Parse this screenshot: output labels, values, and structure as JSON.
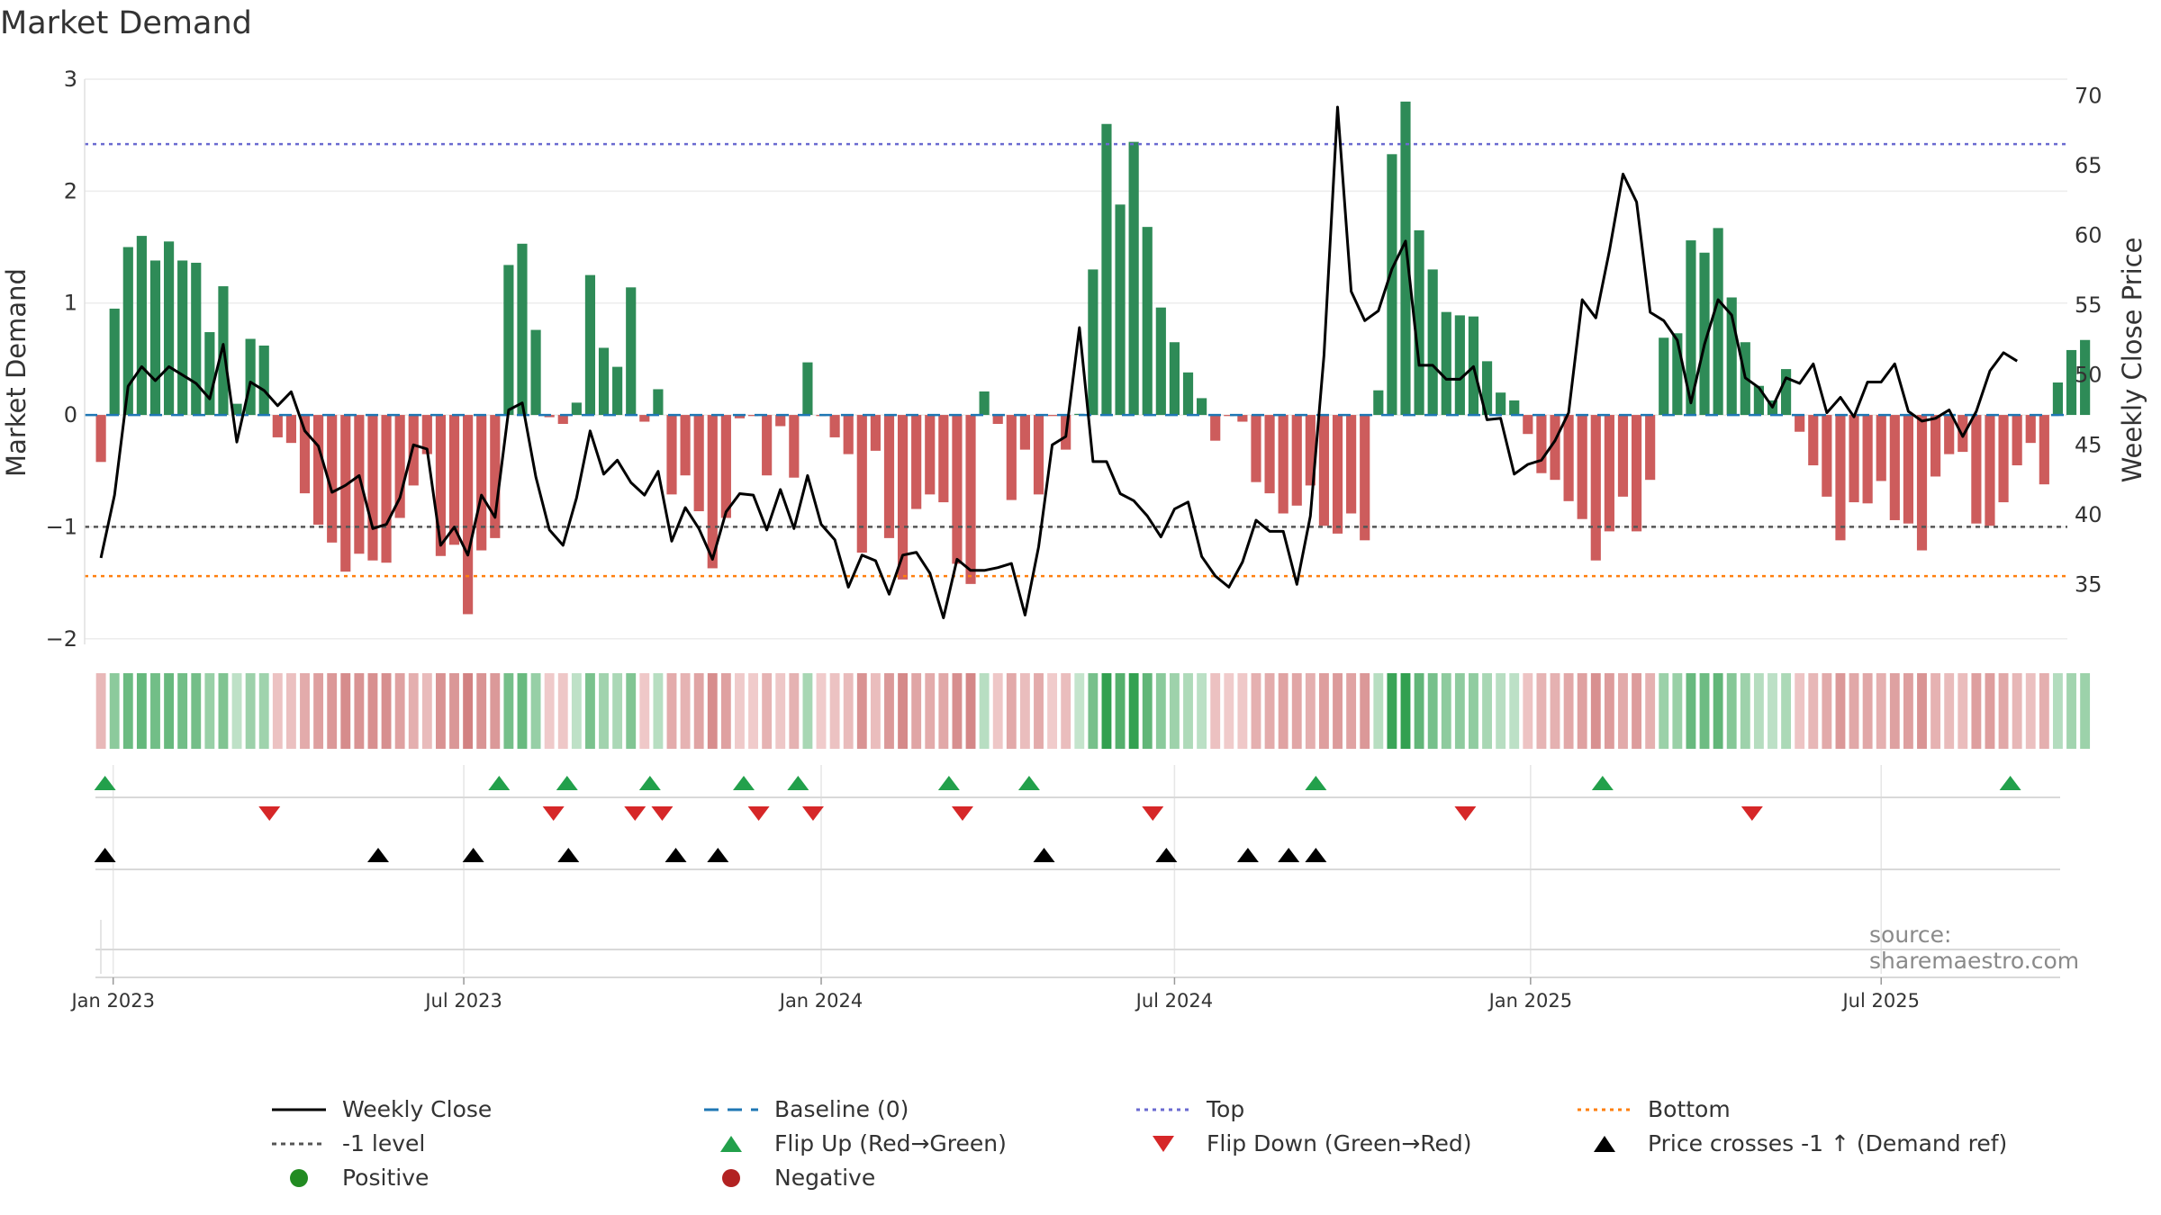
{
  "title": "Market Demand",
  "source_text": "source: sharemaestro.com",
  "colors": {
    "positive_bar": "#2e8b57",
    "negative_bar": "#cd5c5c",
    "line": "#000000",
    "baseline": "#1f77b4",
    "top": "#6a6ad0",
    "bottom": "#ff7f0e",
    "minus_one": "#555555",
    "flip_up": "#22a04b",
    "flip_down": "#d62728",
    "cross": "#000000",
    "legend_positive": "#228b22",
    "legend_negative": "#b22222"
  },
  "chart_data": {
    "type": "bar",
    "title": "Market Demand",
    "ylabel": "Market Demand",
    "y2label": "Weekly Close Price",
    "ylim": [
      -2.05,
      3.0
    ],
    "y2lim": [
      30.7,
      71.2
    ],
    "yticks": [
      -2,
      -1,
      0,
      1,
      2,
      3
    ],
    "yticklabels": [
      "−2",
      "−1",
      "0",
      "1",
      "2",
      "3"
    ],
    "y2ticks": [
      35,
      40,
      45,
      50,
      55,
      60,
      65,
      70
    ],
    "y2ticklabels": [
      "35",
      "40",
      "45",
      "50",
      "55",
      "60",
      "65",
      "70"
    ],
    "xlim": [
      -1.2,
      144.7
    ],
    "xticks": [
      {
        "week": 0.9,
        "label": "Jan 2023"
      },
      {
        "week": 26.7,
        "label": "Jul 2023"
      },
      {
        "week": 53.0,
        "label": "Jan 2024"
      },
      {
        "week": 79.0,
        "label": "Jul 2024"
      },
      {
        "week": 105.2,
        "label": "Jan 2025"
      },
      {
        "week": 131.0,
        "label": "Jul 2025"
      }
    ],
    "reference_lines": {
      "top": 2.42,
      "bottom": -1.44,
      "minus_one": -1.0,
      "baseline": 0.0
    },
    "demand": [
      -0.42,
      0.95,
      1.5,
      1.6,
      1.38,
      1.55,
      1.38,
      1.36,
      0.74,
      1.15,
      0.1,
      0.68,
      0.62,
      -0.2,
      -0.25,
      -0.7,
      -0.98,
      -1.14,
      -1.4,
      -1.24,
      -1.3,
      -1.32,
      -0.92,
      -0.63,
      -0.35,
      -1.26,
      -1.16,
      -1.78,
      -1.21,
      -1.1,
      1.34,
      1.53,
      0.76,
      -0.02,
      -0.08,
      0.11,
      1.25,
      0.6,
      0.43,
      1.14,
      -0.06,
      0.23,
      -0.71,
      -0.54,
      -0.86,
      -1.37,
      -0.92,
      -0.03,
      -0.01,
      -0.54,
      -0.1,
      -0.56,
      0.47,
      -0.01,
      -0.2,
      -0.35,
      -1.23,
      -0.32,
      -1.1,
      -1.47,
      -0.84,
      -0.71,
      -0.78,
      -1.33,
      -1.51,
      0.21,
      -0.08,
      -0.76,
      -0.31,
      -0.71,
      -0.01,
      -0.31,
      0.01,
      1.3,
      2.6,
      1.88,
      2.44,
      1.68,
      0.96,
      0.65,
      0.38,
      0.15,
      -0.23,
      -0.01,
      -0.06,
      -0.6,
      -0.7,
      -0.88,
      -0.81,
      -0.63,
      -0.99,
      -1.06,
      -0.88,
      -1.12,
      0.22,
      2.33,
      2.8,
      1.65,
      1.3,
      0.92,
      0.89,
      0.88,
      0.48,
      0.2,
      0.13,
      -0.17,
      -0.52,
      -0.58,
      -0.77,
      -0.93,
      -1.3,
      -1.04,
      -0.73,
      -1.04,
      -0.58,
      0.69,
      0.73,
      1.56,
      1.45,
      1.67,
      1.05,
      0.65,
      0.26,
      0.13,
      0.41,
      -0.15,
      -0.45,
      -0.73,
      -1.12,
      -0.78,
      -0.79,
      -0.59,
      -0.94,
      -0.97,
      -1.21,
      -0.55,
      -0.35,
      -0.33,
      -0.97,
      -0.99,
      -0.78,
      -0.45,
      -0.25,
      -0.62,
      0.29,
      0.58,
      0.67
    ],
    "weekly_close": [
      36.9,
      41.4,
      49.2,
      50.6,
      49.6,
      50.6,
      50.0,
      49.4,
      48.3,
      52.2,
      45.2,
      49.5,
      48.9,
      47.8,
      48.8,
      46.0,
      44.9,
      41.6,
      42.1,
      42.8,
      39.0,
      39.3,
      41.2,
      45.0,
      44.7,
      37.8,
      39.1,
      37.1,
      41.4,
      39.8,
      47.5,
      48.0,
      42.7,
      38.9,
      37.8,
      41.2,
      46.0,
      42.9,
      43.9,
      42.3,
      41.4,
      43.1,
      38.1,
      40.5,
      39.0,
      36.8,
      40.2,
      41.5,
      41.4,
      38.9,
      41.8,
      39.0,
      42.8,
      39.3,
      38.2,
      34.8,
      37.1,
      36.7,
      34.3,
      37.1,
      37.3,
      35.8,
      32.6,
      36.8,
      36.0,
      36.0,
      36.2,
      36.5,
      32.8,
      37.7,
      45.0,
      45.6,
      53.4,
      43.8,
      43.8,
      41.5,
      41.0,
      39.9,
      38.4,
      40.4,
      40.9,
      37.0,
      35.6,
      34.8,
      36.6,
      39.6,
      38.8,
      38.8,
      35.0,
      39.9,
      51.4,
      69.2,
      56.0,
      53.9,
      54.6,
      57.6,
      59.6,
      50.7,
      50.7,
      49.7,
      49.7,
      50.6,
      46.8,
      46.9,
      42.9,
      43.6,
      43.9,
      45.3,
      47.3,
      55.4,
      54.1,
      58.9,
      64.4,
      62.4,
      54.5,
      53.9,
      52.5,
      48.0,
      52.2,
      55.4,
      54.3,
      49.8,
      49.1,
      47.7,
      49.8,
      49.4,
      50.8,
      47.3,
      48.4,
      47.0,
      49.5,
      49.5,
      50.8,
      47.4,
      46.7,
      46.9,
      47.5,
      45.6,
      47.4,
      50.3,
      51.6,
      51.0
    ],
    "flip_up_weeks": [
      0.3,
      29.3,
      34.3,
      40.4,
      47.3,
      51.3,
      62.4,
      68.3,
      89.4,
      110.5,
      140.5
    ],
    "flip_down_weeks": [
      12.4,
      33.3,
      39.3,
      41.3,
      48.4,
      52.4,
      63.4,
      77.4,
      100.4,
      121.5
    ],
    "price_cross_weeks": [
      0.3,
      20.4,
      27.4,
      34.4,
      42.3,
      45.4,
      69.4,
      78.4,
      84.4,
      87.4,
      89.4
    ]
  },
  "legend": {
    "weekly_close": "Weekly Close",
    "baseline": "Baseline (0)",
    "top": "Top",
    "bottom": "Bottom",
    "minus_one": "-1 level",
    "flip_up": "Flip Up (Red→Green)",
    "flip_down": "Flip Down (Green→Red)",
    "price_cross": "Price crosses -1 ↑ (Demand ref)",
    "positive": "Positive",
    "negative": "Negative"
  }
}
